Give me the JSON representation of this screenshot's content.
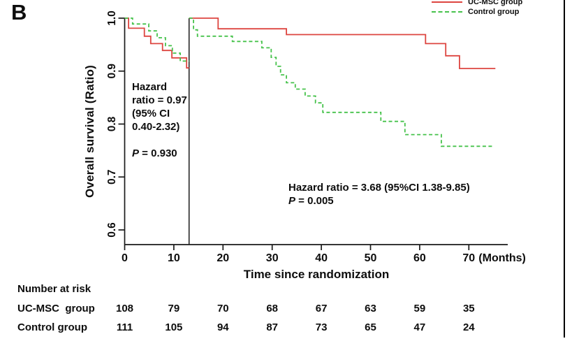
{
  "panel_label": "B",
  "colors": {
    "ucmsc_line": "#dd4540",
    "control_line": "#46c24b",
    "axis": "#1a1a1a",
    "landmark_line": "#1a1a1a",
    "border": "#000000",
    "text": "#0d0d0d"
  },
  "legend": {
    "items": [
      {
        "label": "UC-MSC group",
        "style": "solid"
      },
      {
        "label": "Control group",
        "style": "dashed"
      }
    ]
  },
  "y_axis": {
    "title": "Overall survival (Ratio)",
    "tick_labels": [
      "1.0",
      "0.9",
      "0.8",
      "0.7",
      "0.6"
    ]
  },
  "x_axis": {
    "title": "Time since randomization",
    "tick_labels": [
      "0",
      "10",
      "20",
      "30",
      "40",
      "50",
      "60",
      "70"
    ],
    "unit_suffix": "(Months)"
  },
  "annotations": {
    "early": {
      "text": "Hazard\nratio = 0.97\n(95% CI\n 0.40-2.32)",
      "p_label": "P",
      "p_text": " = 0.930"
    },
    "late": {
      "text": "Hazard ratio = 3.68 (95%CI 1.38-9.85)",
      "p_label": "P",
      "p_text": " = 0.005"
    }
  },
  "risk_table": {
    "title": "Number at risk",
    "rows": [
      {
        "label": "UC-MSC  group",
        "counts": [
          "108",
          "79",
          "70",
          "68",
          "67",
          "63",
          "59",
          "35"
        ]
      },
      {
        "label": "Control group",
        "counts": [
          "111",
          "105",
          "94",
          "87",
          "73",
          "65",
          "47",
          "24"
        ]
      }
    ]
  },
  "chart_data": {
    "type": "line",
    "subtype": "kaplan-meier-step-landmark",
    "title": "",
    "xlabel": "Time since randomization (Months)",
    "ylabel": "Overall survival (Ratio)",
    "xlim": [
      0,
      78
    ],
    "ylim": [
      0.57,
      1.0
    ],
    "x_ticks": [
      0,
      10,
      20,
      30,
      40,
      50,
      60,
      70
    ],
    "y_ticks": [
      1.0,
      0.9,
      0.8,
      0.7,
      0.6
    ],
    "grid": false,
    "legend_position": "top-right",
    "landmark_month": 13.1,
    "series": [
      {
        "name": "UC-MSC group",
        "dash": "solid",
        "segments": [
          [
            [
              0,
              1.0
            ],
            [
              0.8,
              0.981
            ],
            [
              4.0,
              0.966
            ],
            [
              5.3,
              0.952
            ],
            [
              7.7,
              0.939
            ],
            [
              9.6,
              0.925
            ],
            [
              12.6,
              0.906
            ],
            [
              13.1,
              0.906
            ]
          ],
          [
            [
              13.1,
              1.0
            ],
            [
              19.0,
              0.98
            ],
            [
              32.9,
              0.969
            ],
            [
              61.2,
              0.952
            ],
            [
              65.3,
              0.929
            ],
            [
              68.1,
              0.905
            ],
            [
              75.4,
              0.905
            ]
          ]
        ]
      },
      {
        "name": "Control group",
        "dash": "dashed",
        "segments": [
          [
            [
              0,
              1.0
            ],
            [
              1.6,
              0.989
            ],
            [
              4.9,
              0.976
            ],
            [
              6.6,
              0.963
            ],
            [
              8.3,
              0.948
            ],
            [
              9.7,
              0.934
            ],
            [
              11.3,
              0.919
            ],
            [
              13.1,
              0.919
            ]
          ],
          [
            [
              13.1,
              1.0
            ],
            [
              14.0,
              0.978
            ],
            [
              14.8,
              0.966
            ],
            [
              21.9,
              0.956
            ],
            [
              27.9,
              0.944
            ],
            [
              29.8,
              0.926
            ],
            [
              30.8,
              0.909
            ],
            [
              31.7,
              0.893
            ],
            [
              32.9,
              0.878
            ],
            [
              34.7,
              0.866
            ],
            [
              36.7,
              0.853
            ],
            [
              38.8,
              0.84
            ],
            [
              40.3,
              0.822
            ],
            [
              52.1,
              0.805
            ],
            [
              57.0,
              0.78
            ],
            [
              64.4,
              0.758
            ],
            [
              75.1,
              0.758
            ]
          ]
        ]
      }
    ]
  }
}
